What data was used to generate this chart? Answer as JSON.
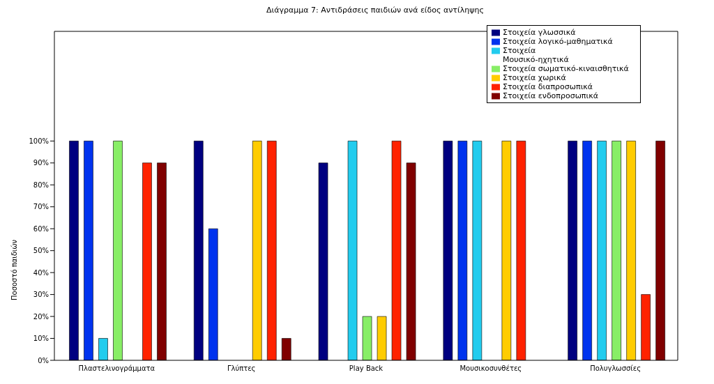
{
  "chart_data": {
    "type": "bar",
    "title": "Διάγραμμα 7: Αντιδράσεις παιδιών ανά είδος αντίληψης",
    "ylabel": "Ποσοστό παιδιών",
    "categories": [
      "Πλαστελινογράμματα",
      "Γλύπτες",
      "Play Back",
      "Μουσικοσυνθέτες",
      "Πολυγλωσσίες"
    ],
    "series": [
      {
        "name": "Στοιχεία γλωσσικά",
        "color": "#000080",
        "values": [
          100,
          100,
          90,
          100,
          100
        ]
      },
      {
        "name": "Στοιχεία λογικό-μαθηματικά",
        "color": "#0033ee",
        "values": [
          100,
          60,
          0,
          100,
          100
        ]
      },
      {
        "name": "Στοιχεία\nΜουσικό-ηχητικά",
        "color": "#22ccee",
        "values": [
          10,
          0,
          100,
          100,
          100
        ]
      },
      {
        "name": "Στοιχεία σωματικό-κιναισθητικά",
        "color": "#88ee66",
        "values": [
          100,
          0,
          20,
          0,
          100
        ]
      },
      {
        "name": "Στοιχεία χωρικά",
        "color": "#ffcc00",
        "values": [
          0,
          100,
          20,
          100,
          100
        ]
      },
      {
        "name": "Στοιχεία διαπροσωπικά",
        "color": "#ff2200",
        "values": [
          90,
          100,
          100,
          100,
          30
        ]
      },
      {
        "name": "Στοιχεία ενδοπροσωπικά",
        "color": "#800000",
        "values": [
          90,
          10,
          90,
          0,
          100
        ]
      }
    ],
    "ylim": [
      0,
      150
    ],
    "yticks": [
      {
        "value": 0,
        "label": "0%"
      },
      {
        "value": 10,
        "label": "10%"
      },
      {
        "value": 20,
        "label": "20%"
      },
      {
        "value": 30,
        "label": "30%"
      },
      {
        "value": 40,
        "label": "40%"
      },
      {
        "value": 50,
        "label": "50%"
      },
      {
        "value": 60,
        "label": "60%"
      },
      {
        "value": 70,
        "label": "70%"
      },
      {
        "value": 80,
        "label": "80%"
      },
      {
        "value": 90,
        "label": "90%"
      },
      {
        "value": 100,
        "label": "100%"
      }
    ],
    "grid": false,
    "legend": "top right"
  }
}
